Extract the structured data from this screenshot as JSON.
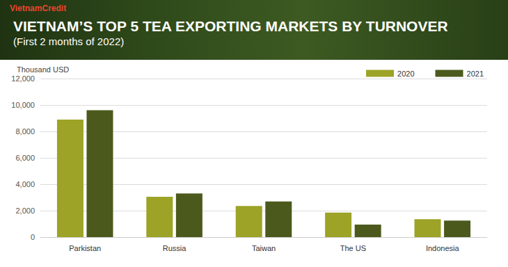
{
  "chart_data": {
    "type": "bar",
    "title": "VIETNAM’S TOP 5 TEA EXPORTING MARKETS BY TURNOVER",
    "subtitle": "(First 2 months of 2022)",
    "y_label": "Thousand USD",
    "annotations": [
      "VietnamCredit"
    ],
    "categories": [
      "Parkistan",
      "Russia",
      "Taiwan",
      "The US",
      "Indonesia"
    ],
    "series": [
      {
        "name": "2020",
        "color": "#9ca326",
        "values": [
          8900,
          3050,
          2350,
          1850,
          1350
        ]
      },
      {
        "name": "2021",
        "color": "#4b5a1c",
        "values": [
          9600,
          3300,
          2700,
          950,
          1250
        ]
      }
    ],
    "ylim": [
      0,
      12000
    ],
    "yticks": [
      0,
      {
        "value": 2000,
        "label": "2,000"
      },
      {
        "value": 4000,
        "label": "4,000"
      },
      {
        "value": 6000,
        "label": "6,000"
      },
      {
        "value": 8000,
        "label": "8,000"
      },
      {
        "value": 10000,
        "label": "10,000"
      },
      {
        "value": 12000,
        "label": "12,000"
      }
    ],
    "grid": true,
    "legend": "top-right"
  }
}
